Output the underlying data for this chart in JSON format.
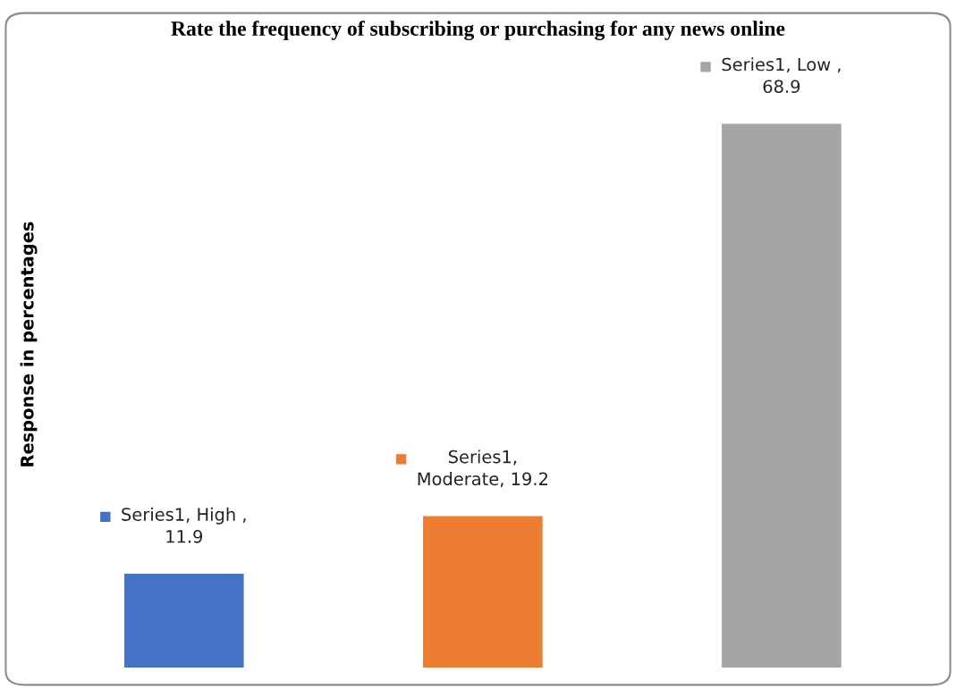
{
  "chart_data": {
    "type": "bar",
    "title": "Rate the frequency of subscribing or purchasing for any news online",
    "ylabel": "Response in percentages",
    "categories": [
      null,
      null,
      null
    ],
    "values": [
      11.9,
      19.2,
      68.9
    ],
    "colors": [
      "#4472c4",
      "#ed7d31",
      "#a5a5a5"
    ],
    "value_labels": [
      "Series1, High ,\n11.9",
      "Series1,\nModerate, 19.2",
      "Series1, Low ,\n68.9"
    ],
    "grid": false,
    "legend": false
  }
}
